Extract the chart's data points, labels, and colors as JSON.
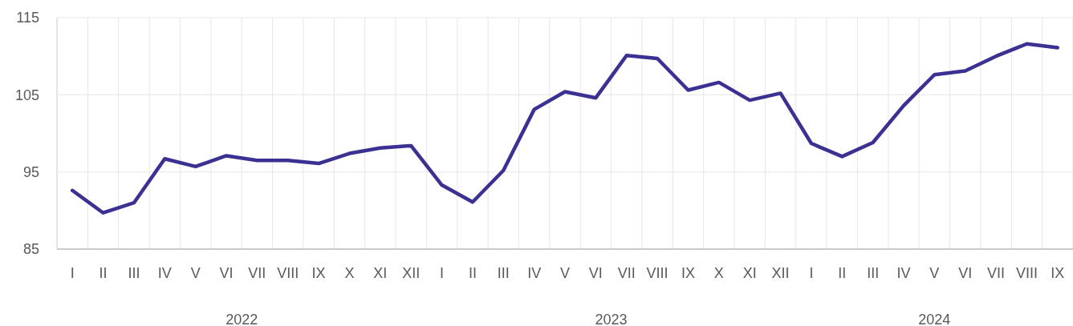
{
  "chart_data": {
    "type": "line",
    "categories": [
      "I",
      "II",
      "III",
      "IV",
      "V",
      "VI",
      "VII",
      "VIII",
      "IX",
      "X",
      "XI",
      "XII",
      "I",
      "II",
      "III",
      "IV",
      "V",
      "VI",
      "VII",
      "VIII",
      "IX",
      "X",
      "XI",
      "XII",
      "I",
      "II",
      "III",
      "IV",
      "V",
      "VI",
      "VII",
      "VIII",
      "IX"
    ],
    "series": [
      {
        "color": "#3a3192",
        "values": [
          92.6,
          89.7,
          91.0,
          96.7,
          95.7,
          97.1,
          96.5,
          96.5,
          96.1,
          97.4,
          98.1,
          98.4,
          93.3,
          91.1,
          95.2,
          103.1,
          105.4,
          104.6,
          110.1,
          109.7,
          105.6,
          106.6,
          104.3,
          105.2,
          98.7,
          97.0,
          98.8,
          103.6,
          107.6,
          108.1,
          110.0,
          111.6,
          111.1
        ]
      }
    ],
    "ylim": [
      85,
      115
    ],
    "yticks": [
      85,
      95,
      105,
      115
    ],
    "grid": true,
    "marker": "none",
    "line_style": "solid",
    "annotations": [
      "2022",
      "2023",
      "2024"
    ]
  }
}
